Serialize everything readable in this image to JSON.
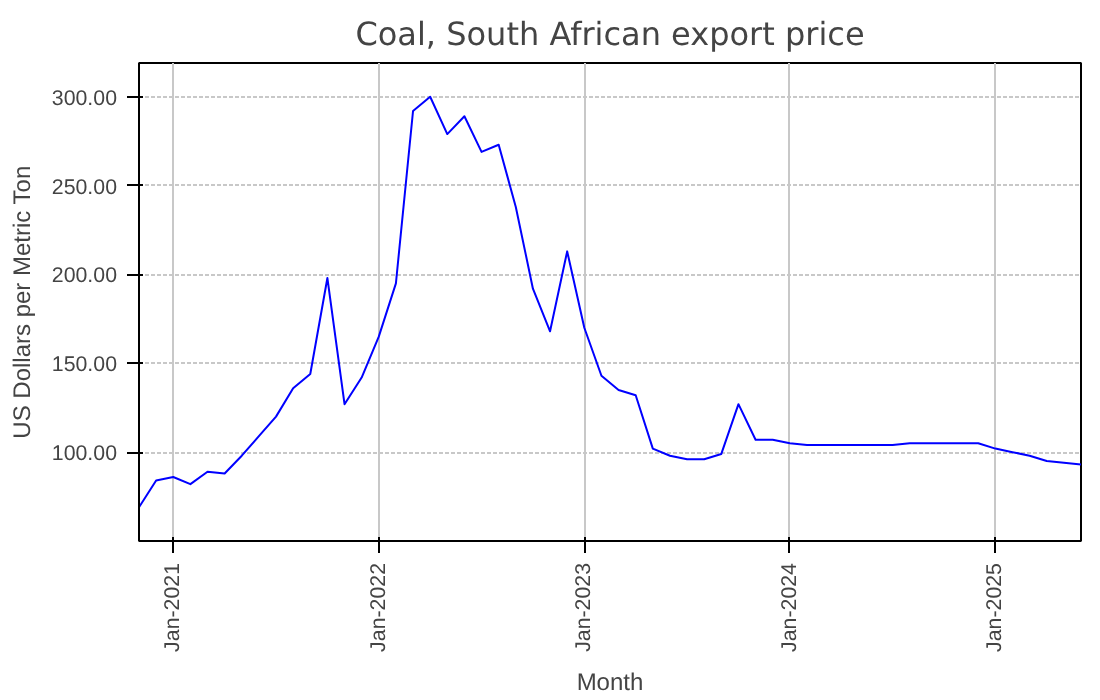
{
  "chart_data": {
    "type": "line",
    "title": "Coal, South African export price",
    "xlabel": "Month",
    "ylabel": "US Dollars per Metric Ton",
    "x": [
      "2020-11",
      "2020-12",
      "2021-01",
      "2021-02",
      "2021-03",
      "2021-04",
      "2021-05",
      "2021-06",
      "2021-07",
      "2021-08",
      "2021-09",
      "2021-10",
      "2021-11",
      "2021-12",
      "2022-01",
      "2022-02",
      "2022-03",
      "2022-04",
      "2022-05",
      "2022-06",
      "2022-07",
      "2022-08",
      "2022-09",
      "2022-10",
      "2022-11",
      "2022-12",
      "2023-01",
      "2023-02",
      "2023-03",
      "2023-04",
      "2023-05",
      "2023-06",
      "2023-07",
      "2023-08",
      "2023-09",
      "2023-10",
      "2023-11",
      "2023-12",
      "2024-01",
      "2024-02",
      "2024-03",
      "2024-04",
      "2024-05",
      "2024-06",
      "2024-07",
      "2024-08",
      "2024-09",
      "2024-10",
      "2024-11",
      "2024-12",
      "2025-01",
      "2025-02",
      "2025-03",
      "2025-04",
      "2025-05",
      "2025-06"
    ],
    "series": [
      {
        "color": "#0000ff",
        "values": [
          69,
          84,
          86,
          82,
          89,
          88,
          98,
          109,
          120,
          136,
          144,
          198,
          127,
          142,
          165,
          195,
          292,
          300,
          279,
          289,
          269,
          273,
          238,
          192,
          168,
          213,
          170,
          143,
          135,
          132,
          102,
          98,
          96,
          96,
          99,
          127,
          107,
          107,
          105,
          104,
          104,
          104,
          104,
          104,
          104,
          105,
          105,
          105,
          105,
          105,
          102,
          100,
          98,
          95,
          94,
          93
        ]
      }
    ],
    "xlim": [
      "2020-11",
      "2025-06"
    ],
    "ylim": [
      50,
      319
    ],
    "xticks": [
      {
        "value": "2021-01",
        "label": "Jan-2021"
      },
      {
        "value": "2022-01",
        "label": "Jan-2022"
      },
      {
        "value": "2023-01",
        "label": "Jan-2023"
      },
      {
        "value": "2024-01",
        "label": "Jan-2024"
      },
      {
        "value": "2025-01",
        "label": "Jan-2025"
      }
    ],
    "yticks": [
      {
        "value": 100,
        "label": "100.00"
      },
      {
        "value": 150,
        "label": "150.00"
      },
      {
        "value": 200,
        "label": "200.00"
      },
      {
        "value": 250,
        "label": "250.00"
      },
      {
        "value": 300,
        "label": "300.00"
      }
    ],
    "grid": true,
    "line_style": "solid"
  }
}
